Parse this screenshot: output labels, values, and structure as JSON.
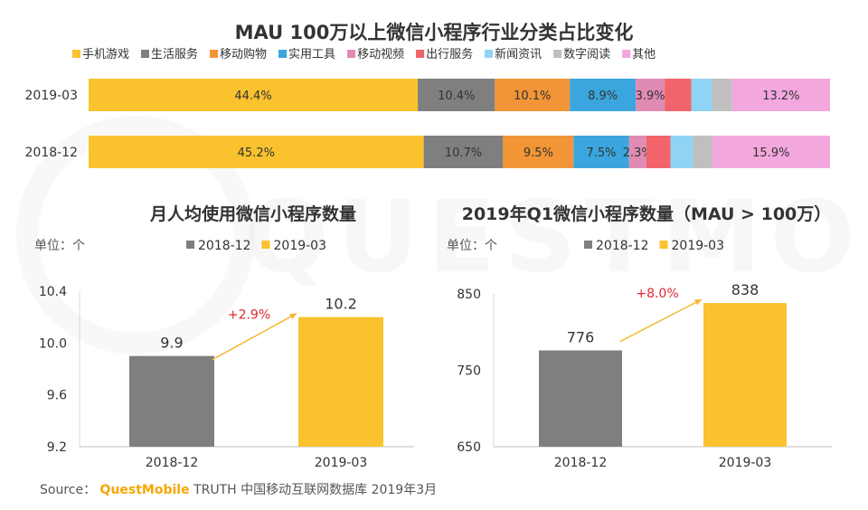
{
  "chart_data": [
    {
      "type": "bar",
      "orientation": "horizontal",
      "stacked": true,
      "title": "MAU 100万以上微信小程序行业分类占比变化",
      "categories": [
        "2019-03",
        "2018-12"
      ],
      "legend_position": "top",
      "series": [
        {
          "name": "手机游戏",
          "color": "#f9c22e",
          "values": [
            44.4,
            45.2
          ],
          "labels": [
            "44.4%",
            "45.2%"
          ]
        },
        {
          "name": "生活服务",
          "color": "#7f7f7f",
          "values": [
            10.4,
            10.7
          ],
          "labels": [
            "10.4%",
            "10.7%"
          ]
        },
        {
          "name": "移动购物",
          "color": "#f29536",
          "values": [
            10.1,
            9.5
          ],
          "labels": [
            "10.1%",
            "9.5%"
          ]
        },
        {
          "name": "实用工具",
          "color": "#3aa6dd",
          "values": [
            8.9,
            7.5
          ],
          "labels": [
            "8.9%",
            "7.5%"
          ]
        },
        {
          "name": "移动视频",
          "color": "#e08bb4",
          "values": [
            3.9,
            2.3
          ],
          "labels": [
            "3.9%",
            "2.3%"
          ]
        },
        {
          "name": "出行服务",
          "color": "#f1646b",
          "values": [
            3.6,
            3.3
          ],
          "labels": [
            "",
            ""
          ]
        },
        {
          "name": "新闻资讯",
          "color": "#8fd3f5",
          "values": [
            2.8,
            3.0
          ],
          "labels": [
            "",
            ""
          ]
        },
        {
          "name": "数字阅读",
          "color": "#bfbfbf",
          "values": [
            2.7,
            2.6
          ],
          "labels": [
            "",
            ""
          ]
        },
        {
          "name": "其他",
          "color": "#f2a7dd",
          "values": [
            13.2,
            15.9
          ],
          "labels": [
            "13.2%",
            "15.9%"
          ]
        }
      ]
    },
    {
      "type": "bar",
      "title": "月人均使用微信小程序数量",
      "unit_label": "单位：个",
      "categories": [
        "2018-12",
        "2019-03"
      ],
      "values": [
        9.9,
        10.2
      ],
      "value_labels": [
        "9.9",
        "10.2"
      ],
      "colors": [
        "#7f7f7f",
        "#f9c22e"
      ],
      "legend": [
        "2018-12",
        "2019-03"
      ],
      "ylim": [
        9.2,
        10.4
      ],
      "yticks": [
        "9.2",
        "9.6",
        "10.0",
        "10.4"
      ],
      "annotation": "+2.9%"
    },
    {
      "type": "bar",
      "title": "2019年Q1微信小程序数量（MAU > 100万）",
      "unit_label": "单位：个",
      "categories": [
        "2018-12",
        "2019-03"
      ],
      "values": [
        776,
        838
      ],
      "value_labels": [
        "776",
        "838"
      ],
      "colors": [
        "#7f7f7f",
        "#f9c22e"
      ],
      "legend": [
        "2018-12",
        "2019-03"
      ],
      "ylim": [
        650,
        850
      ],
      "yticks": [
        "650",
        "750",
        "850"
      ],
      "annotation": "+8.0%"
    }
  ],
  "source": {
    "prefix": "Source：",
    "brand": "QuestMobile",
    "rest": "TRUTH 中国移动互联网数据库 2019年3月"
  },
  "watermark": "QUESTMOBILE",
  "annotation_color": "#e0262f",
  "arrow_color": "#f7b733"
}
